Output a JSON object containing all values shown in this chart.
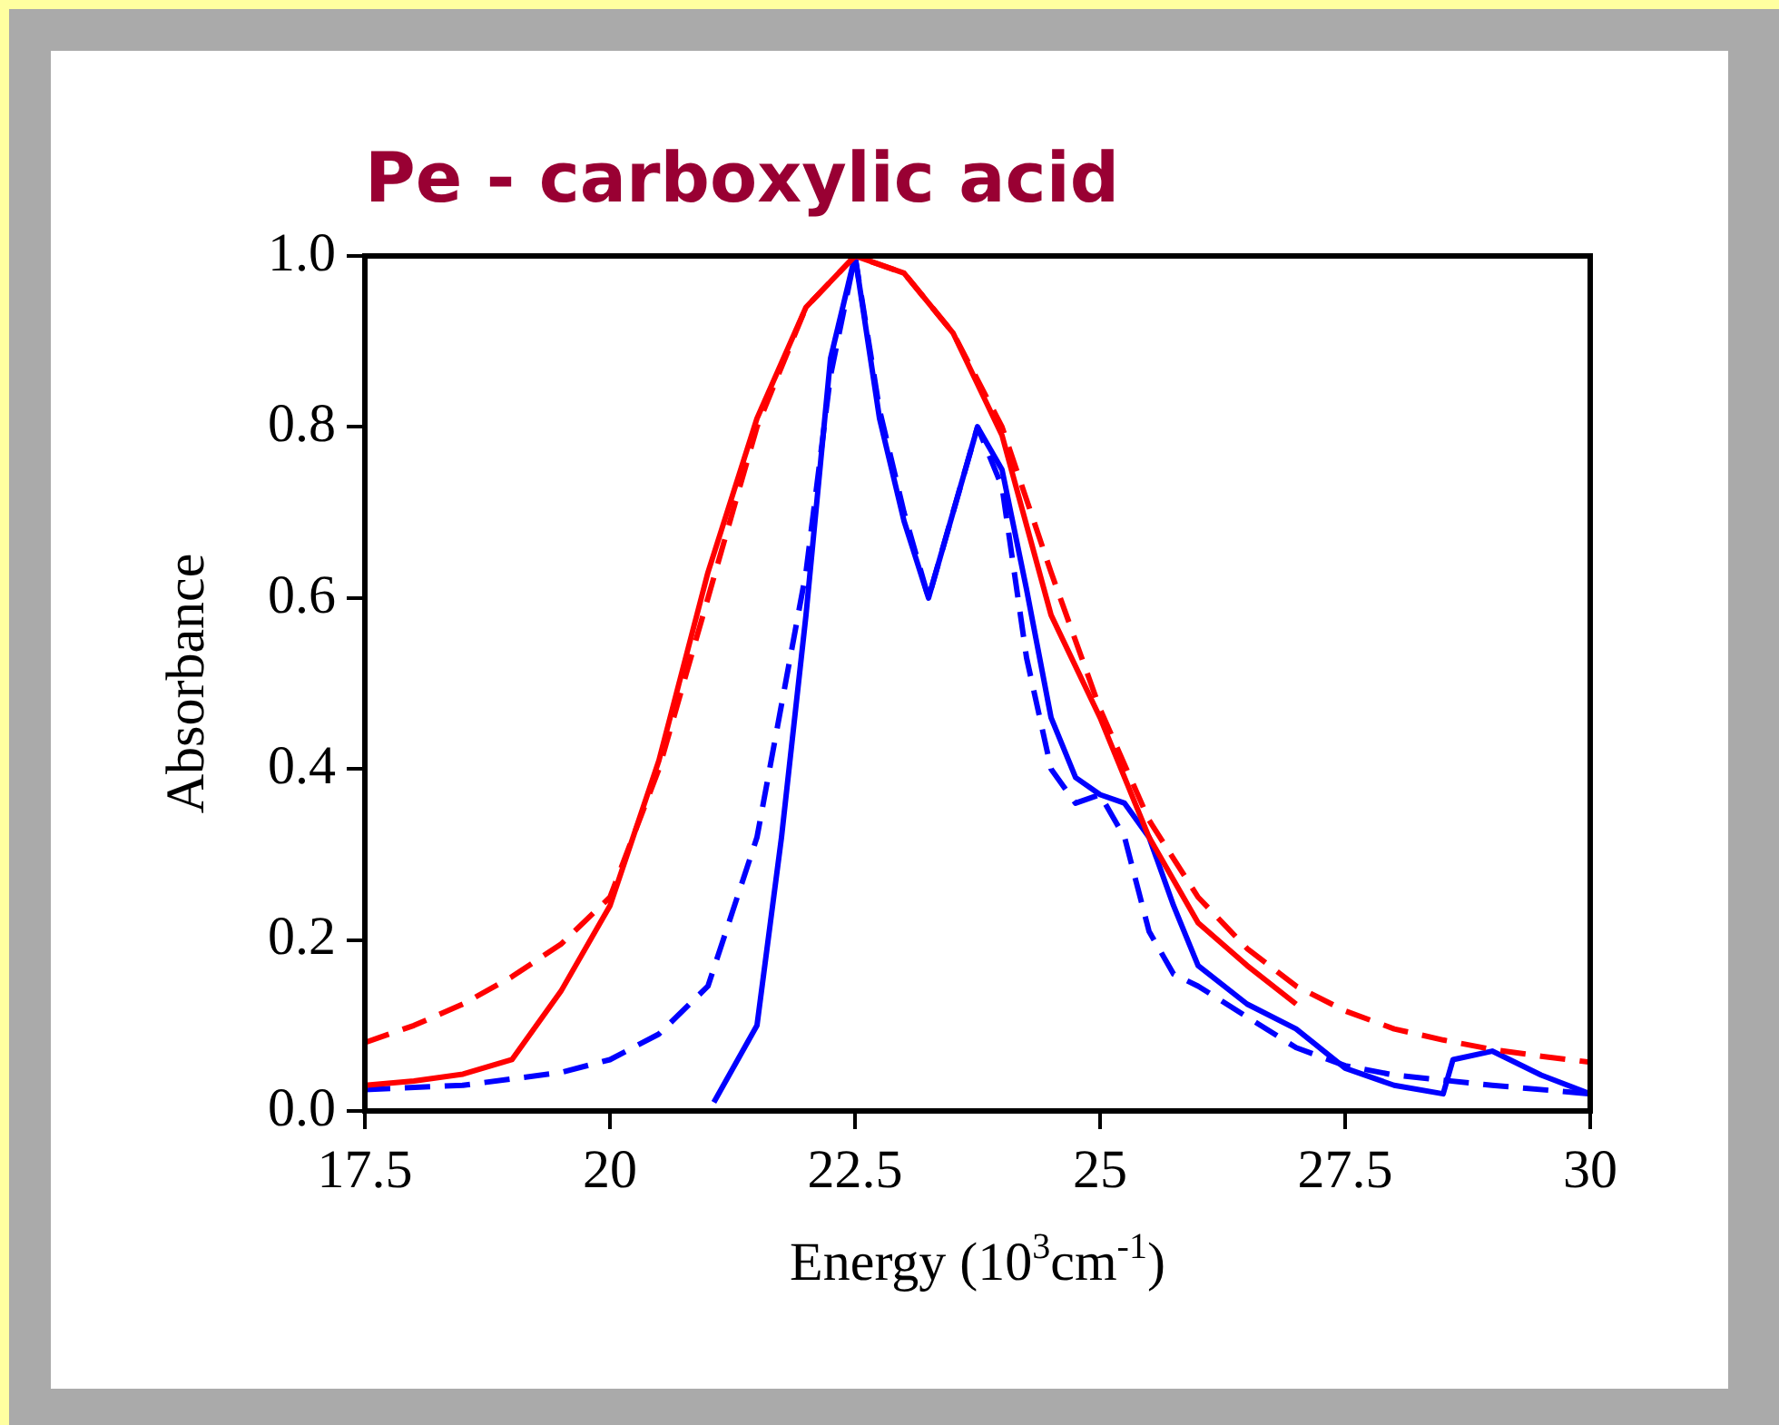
{
  "chart_data": {
    "type": "line",
    "title": "Pe - carboxylic acid",
    "xlabel": "Energy (10$^{3}$cm$^{-1}$)",
    "ylabel": "Absorbance",
    "xlim": [
      17.5,
      30
    ],
    "xticks": [
      17.5,
      20,
      22.5,
      25,
      27.5,
      30
    ],
    "ylim": [
      0,
      1
    ],
    "yticks": [
      {
        "value": 0,
        "label": "0.0"
      },
      {
        "value": 0.2,
        "label": "0.2"
      },
      {
        "value": 0.4,
        "label": "0.4"
      },
      {
        "value": 0.6,
        "label": "0.6"
      },
      {
        "value": 0.8,
        "label": "0.8"
      },
      {
        "value": 1,
        "label": "1.0"
      }
    ],
    "grid": false,
    "legend": false,
    "marker": "none",
    "series": [
      {
        "color": "#ff0000",
        "line_style": "solid",
        "x": [
          17.5,
          18,
          18.5,
          19,
          19.5,
          20,
          20.5,
          21,
          21.5,
          22,
          22.5,
          23,
          23.5,
          24,
          24.5,
          25,
          25.5,
          26,
          26.5,
          27
        ],
        "values": [
          0.03,
          0.035,
          0.043,
          0.06,
          0.14,
          0.24,
          0.41,
          0.63,
          0.81,
          0.94,
          1.0,
          0.98,
          0.91,
          0.79,
          0.58,
          0.46,
          0.32,
          0.22,
          0.17,
          0.125
        ]
      },
      {
        "color": "#ff0000",
        "line_style": "dashed",
        "x": [
          17.5,
          18,
          18.5,
          19,
          19.5,
          20,
          20.5,
          21,
          21.5,
          22,
          22.5,
          23,
          23.5,
          24,
          24.5,
          25,
          25.5,
          26,
          26.5,
          27,
          27.5,
          28,
          28.5,
          29,
          29.5,
          30
        ],
        "values": [
          0.08,
          0.1,
          0.125,
          0.157,
          0.195,
          0.25,
          0.4,
          0.6,
          0.8,
          0.94,
          1.0,
          0.98,
          0.91,
          0.8,
          0.63,
          0.47,
          0.34,
          0.25,
          0.19,
          0.146,
          0.117,
          0.096,
          0.083,
          0.072,
          0.064,
          0.057
        ]
      },
      {
        "color": "#0000ff",
        "line_style": "solid",
        "x": [
          21.06,
          21.5,
          21.75,
          22,
          22.25,
          22.5,
          22.75,
          23,
          23.25,
          23.5,
          23.75,
          24,
          24.25,
          24.5,
          24.75,
          25,
          25.25,
          25.5,
          25.75,
          26,
          26.5,
          27,
          27.5,
          28,
          28.5,
          28.6,
          29,
          29.5,
          30
        ],
        "values": [
          0.01,
          0.1,
          0.32,
          0.58,
          0.88,
          1.0,
          0.81,
          0.69,
          0.6,
          0.7,
          0.8,
          0.75,
          0.61,
          0.46,
          0.39,
          0.37,
          0.36,
          0.32,
          0.24,
          0.17,
          0.125,
          0.096,
          0.05,
          0.03,
          0.02,
          0.06,
          0.07,
          0.042,
          0.02
        ]
      },
      {
        "color": "#0000ff",
        "line_style": "dashed",
        "x": [
          17.5,
          18.5,
          19.5,
          20,
          20.5,
          21,
          21.5,
          22,
          22.25,
          22.5,
          22.75,
          23,
          23.25,
          23.5,
          23.75,
          24,
          24.25,
          24.5,
          24.75,
          25,
          25.25,
          25.5,
          25.75,
          26,
          26.5,
          27,
          27.5,
          28,
          28.5,
          29,
          30
        ],
        "values": [
          0.025,
          0.03,
          0.045,
          0.06,
          0.09,
          0.146,
          0.32,
          0.63,
          0.86,
          1.0,
          0.82,
          0.7,
          0.6,
          0.7,
          0.8,
          0.73,
          0.53,
          0.4,
          0.36,
          0.37,
          0.32,
          0.21,
          0.16,
          0.146,
          0.11,
          0.074,
          0.053,
          0.042,
          0.036,
          0.03,
          0.02
        ]
      }
    ]
  }
}
